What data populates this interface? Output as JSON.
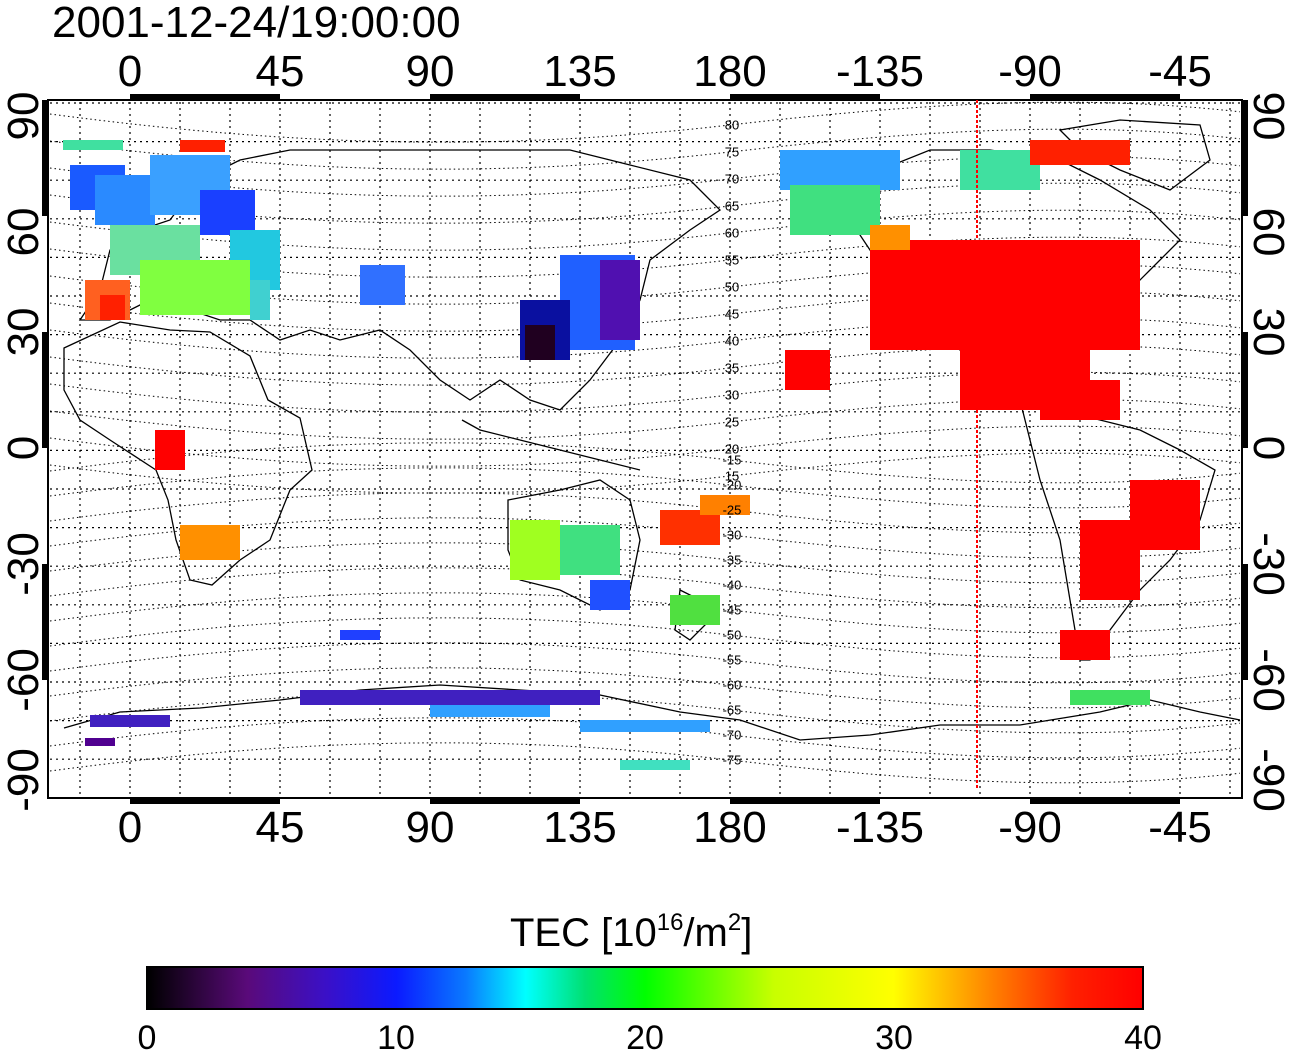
{
  "header": {
    "timestamp": "2001-12-24/19:00:00"
  },
  "map": {
    "longitude_ticks": [
      "0",
      "45",
      "90",
      "135",
      "180",
      "-135",
      "-90",
      "-45"
    ],
    "latitude_ticks": [
      "90",
      "60",
      "30",
      "0",
      "-30",
      "-60",
      "-90"
    ],
    "terminator_longitude": "-105",
    "contour_labels": [
      "80",
      "75",
      "70",
      "65",
      "60",
      "55",
      "50",
      "45",
      "40",
      "35",
      "30",
      "25",
      "20",
      "15",
      "-15",
      "-20",
      "-25",
      "-30",
      "-35",
      "-40",
      "-45",
      "-50",
      "-55",
      "-60",
      "-65",
      "-70",
      "-75"
    ],
    "colors": {
      "frame": "#000000",
      "grid": "#000000",
      "terminator": "#ff0000"
    }
  },
  "colorbar": {
    "title_prefix": "TEC  [10",
    "title_exp": "16",
    "title_mid": "/m",
    "title_exp2": "2",
    "title_suffix": "]",
    "ticks": [
      "0",
      "10",
      "20",
      "30",
      "40"
    ]
  }
}
